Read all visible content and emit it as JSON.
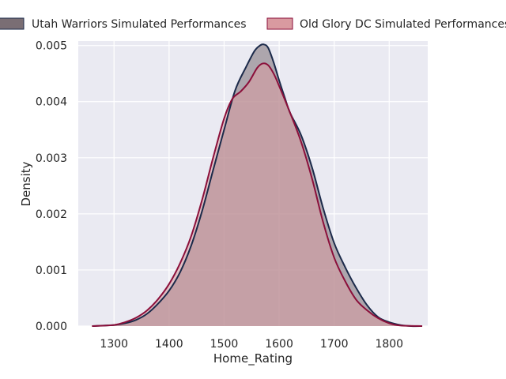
{
  "chart_data": {
    "type": "area",
    "title": "",
    "xlabel": "Home_Rating",
    "ylabel": "Density",
    "xlim": [
      1235,
      1870
    ],
    "ylim": [
      0,
      0.00508
    ],
    "xticks": [
      1300,
      1400,
      1500,
      1600,
      1700,
      1800
    ],
    "yticks": [
      0.0,
      0.001,
      0.002,
      0.003,
      0.004,
      0.005
    ],
    "ytick_labels": [
      "0.000",
      "0.001",
      "0.002",
      "0.003",
      "0.004",
      "0.005"
    ],
    "grid": true,
    "legend_position": "top",
    "series": [
      {
        "name": "Utah Warriors Simulated Performances",
        "line_color": "#1b2a4a",
        "fill_color": "#7a6e74",
        "x": [
          1260,
          1300,
          1320,
          1340,
          1360,
          1380,
          1400,
          1420,
          1440,
          1460,
          1480,
          1500,
          1520,
          1540,
          1555,
          1565,
          1572,
          1580,
          1590,
          1600,
          1610,
          1620,
          1640,
          1660,
          1680,
          1700,
          1720,
          1740,
          1760,
          1780,
          1800,
          1820,
          1840,
          1860
        ],
        "y": [
          0.0,
          2e-05,
          5e-05,
          0.00011,
          0.00022,
          0.0004,
          0.00063,
          0.00096,
          0.00143,
          0.00205,
          0.00278,
          0.0035,
          0.0042,
          0.00462,
          0.0049,
          0.005,
          0.00502,
          0.00496,
          0.0047,
          0.00438,
          0.00408,
          0.0038,
          0.0034,
          0.00282,
          0.0021,
          0.00148,
          0.00105,
          0.00068,
          0.00037,
          0.00016,
          7e-05,
          2e-05,
          0.0,
          0.0
        ]
      },
      {
        "name": "Old Glory DC Simulated Performances",
        "line_color": "#8b0f3a",
        "fill_color": "#d99aa0",
        "x": [
          1260,
          1300,
          1320,
          1340,
          1360,
          1380,
          1400,
          1420,
          1440,
          1460,
          1480,
          1500,
          1515,
          1530,
          1545,
          1560,
          1570,
          1580,
          1590,
          1600,
          1620,
          1640,
          1660,
          1680,
          1700,
          1720,
          1740,
          1760,
          1780,
          1800,
          1820,
          1860
        ],
        "y": [
          0.0,
          2e-05,
          7e-05,
          0.00015,
          0.00028,
          0.00048,
          0.00075,
          0.00112,
          0.0016,
          0.00225,
          0.003,
          0.0037,
          0.00405,
          0.00418,
          0.00435,
          0.0046,
          0.00468,
          0.00465,
          0.0045,
          0.00428,
          0.0038,
          0.00328,
          0.00262,
          0.00185,
          0.00122,
          0.0008,
          0.00047,
          0.00028,
          0.00014,
          5e-05,
          1e-05,
          0.0
        ]
      }
    ]
  }
}
